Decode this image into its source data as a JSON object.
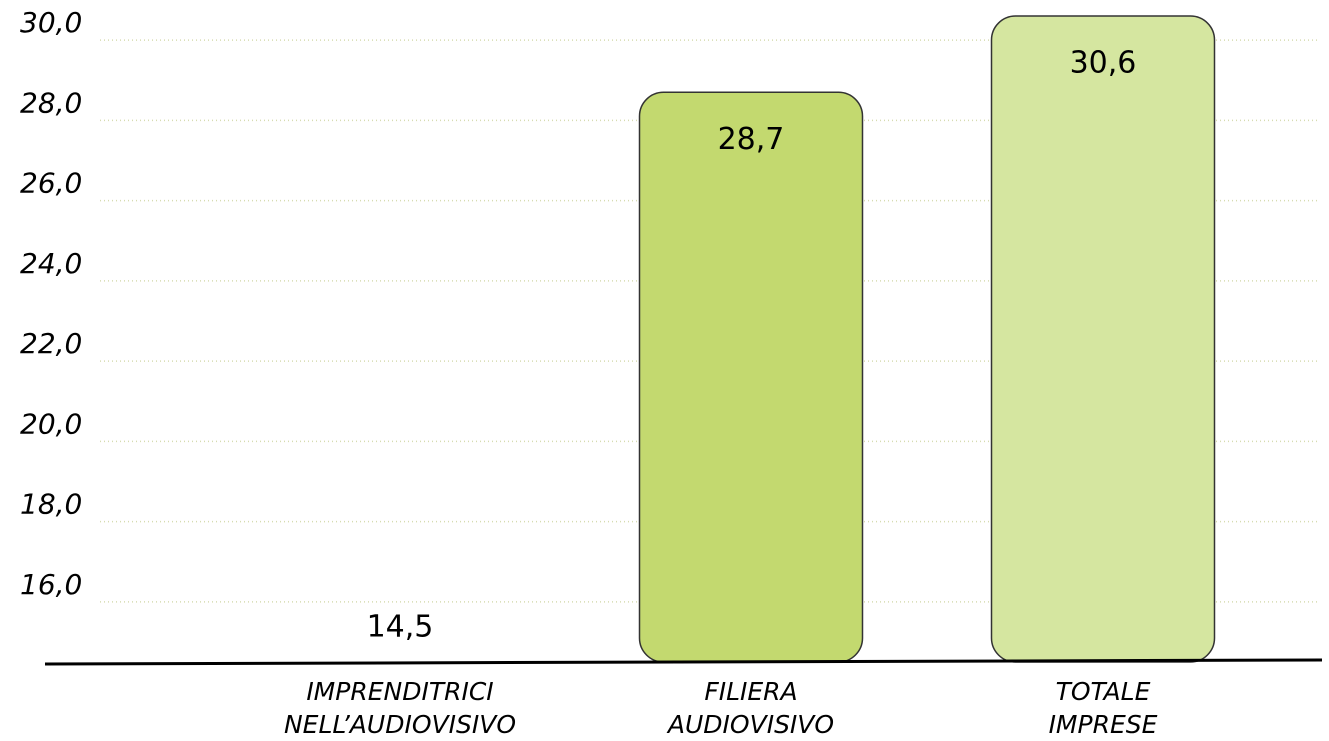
{
  "chart_data": {
    "type": "bar",
    "categories": [
      "IMPRENDITRICI\nNELL’AUDIOVISIVO",
      "FILIERA\nAUDIOVISIVO",
      "TOTALE\nIMPRESE"
    ],
    "values": [
      14.5,
      28.7,
      30.6
    ],
    "value_labels": [
      "14,5",
      "28,7",
      "30,6"
    ],
    "colors": [
      "#d9d9d9",
      "#c3d96f",
      "#d5e6a0"
    ],
    "ylim": [
      14.5,
      31.0
    ],
    "yticks": [
      {
        "value": 16,
        "label": "16,0"
      },
      {
        "value": 18,
        "label": "18,0"
      },
      {
        "value": 20,
        "label": "20,0"
      },
      {
        "value": 22,
        "label": "22,0"
      },
      {
        "value": 24,
        "label": "24,0"
      },
      {
        "value": 26,
        "label": "26,0"
      },
      {
        "value": 28,
        "label": "28,0"
      },
      {
        "value": 30,
        "label": "30,0"
      }
    ],
    "grid": true
  }
}
